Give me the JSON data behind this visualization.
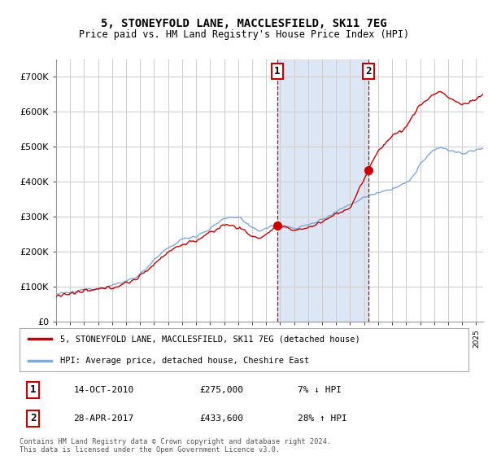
{
  "title": "5, STONEYFOLD LANE, MACCLESFIELD, SK11 7EG",
  "subtitle": "Price paid vs. HM Land Registry's House Price Index (HPI)",
  "title_fontsize": 10,
  "subtitle_fontsize": 8.5,
  "background_color": "#ffffff",
  "plot_background_color": "#ffffff",
  "grid_color": "#cccccc",
  "shade_color": "#dce6f5",
  "ylim": [
    0,
    750000
  ],
  "yticks": [
    0,
    100000,
    200000,
    300000,
    400000,
    500000,
    600000,
    700000
  ],
  "ytick_labels": [
    "£0",
    "£100K",
    "£200K",
    "£300K",
    "£400K",
    "£500K",
    "£600K",
    "£700K"
  ],
  "hpi_color": "#7faadb",
  "price_color": "#cc0000",
  "sale1_x": 2010.79,
  "sale1_y": 275000,
  "sale2_x": 2017.33,
  "sale2_y": 433600,
  "sale1_label": "1",
  "sale2_label": "2",
  "legend_house_label": "5, STONEYFOLD LANE, MACCLESFIELD, SK11 7EG (detached house)",
  "legend_hpi_label": "HPI: Average price, detached house, Cheshire East",
  "annotation1_date": "14-OCT-2010",
  "annotation1_price": "£275,000",
  "annotation1_pct": "7% ↓ HPI",
  "annotation2_date": "28-APR-2017",
  "annotation2_price": "£433,600",
  "annotation2_pct": "28% ↑ HPI",
  "footer": "Contains HM Land Registry data © Crown copyright and database right 2024.\nThis data is licensed under the Open Government Licence v3.0.",
  "xmin": 1995,
  "xmax": 2025.5
}
